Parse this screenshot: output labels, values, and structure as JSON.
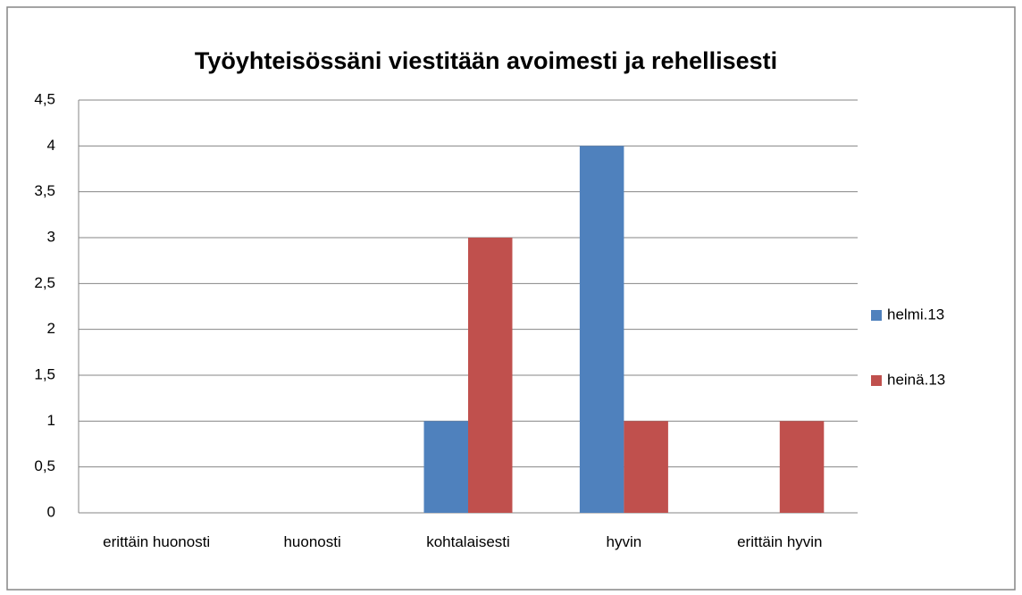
{
  "chart_data": {
    "type": "bar",
    "title": "Työyhteisössäni viestitään avoimesti ja rehellisesti",
    "categories": [
      "erittäin huonosti",
      "huonosti",
      "kohtalaisesti",
      "hyvin",
      "erittäin hyvin"
    ],
    "series": [
      {
        "name": "helmi.13",
        "color": "#4f81bd",
        "values": [
          0,
          0,
          1,
          4,
          0
        ]
      },
      {
        "name": "heinä.13",
        "color": "#c0504d",
        "values": [
          0,
          0,
          3,
          1,
          1
        ]
      }
    ],
    "ylim": [
      0,
      4.5
    ],
    "yticks": [
      0,
      {
        "value": 0.5,
        "label": "0,5"
      },
      1,
      {
        "value": 1.5,
        "label": "1,5"
      },
      2,
      {
        "value": 2.5,
        "label": "2,5"
      },
      3,
      {
        "value": 3.5,
        "label": "3,5"
      },
      4,
      {
        "value": 4.5,
        "label": "4,5"
      }
    ],
    "grid": true,
    "legend": "right"
  }
}
